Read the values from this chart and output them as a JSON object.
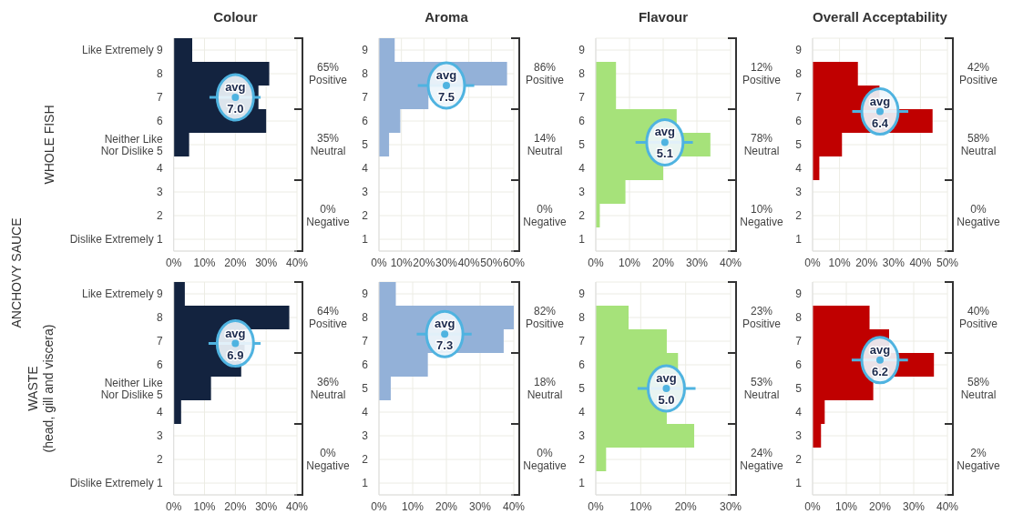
{
  "chart_data": [
    {
      "type": "histogram",
      "orientation": "horizontal",
      "title": "Colour",
      "ylabel": "WHOLE FISH",
      "color": "#13233f",
      "bins": [
        0.5,
        1.5,
        2.5,
        3.5,
        4.5,
        5.5,
        6.5,
        7.5,
        8.5,
        9.5
      ],
      "values": [
        0,
        0,
        0,
        0,
        5,
        30,
        27.5,
        31,
        6
      ],
      "xlim": [
        0,
        40
      ],
      "xticks": [
        {
          "value": 0,
          "label": "0%"
        },
        {
          "value": 10,
          "label": "10%"
        },
        {
          "value": 20,
          "label": "20%"
        },
        {
          "value": 30,
          "label": "30%"
        },
        {
          "value": 40,
          "label": "40%"
        }
      ],
      "ylim": [
        0.5,
        9.5
      ],
      "yticks": [
        {
          "value": 1,
          "label": "Dislike Extremely 1"
        },
        2,
        3,
        4,
        {
          "value": 5,
          "label": "Neither Like\nNor Dislike 5"
        },
        6,
        7,
        8,
        {
          "value": 9,
          "label": "Like Extremely 9"
        }
      ],
      "grid": true,
      "series": [
        {
          "type": "scatter",
          "color": "#4fb3e0",
          "x": [
            7.0
          ],
          "values": [
            20
          ],
          "errors": [
            [
              11.6,
              28.2
            ]
          ],
          "value_labels": [
            "avg\n7.0"
          ]
        }
      ],
      "annotations": [
        "65%\nPositive",
        "35%\nNeutral",
        "0%\nNegative",
        "ANCHOVY SAUCE"
      ]
    },
    {
      "type": "histogram",
      "orientation": "horizontal",
      "title": "Aroma",
      "color": "#93b1d8",
      "bins": [
        0.5,
        1.5,
        2.5,
        3.5,
        4.5,
        5.5,
        6.5,
        7.5,
        8.5,
        9.5
      ],
      "values": [
        0,
        0,
        0,
        0,
        4.5,
        9.5,
        22,
        57,
        7
      ],
      "xlim": [
        0,
        60
      ],
      "xticks": [
        {
          "value": 0,
          "label": "0%"
        },
        {
          "value": 10,
          "label": "10%"
        },
        {
          "value": 20,
          "label": "20%"
        },
        {
          "value": 30,
          "label": "30%"
        },
        {
          "value": 40,
          "label": "40%"
        },
        {
          "value": 50,
          "label": "50%"
        },
        {
          "value": 60,
          "label": "60%"
        }
      ],
      "ylim": [
        0.5,
        9.5
      ],
      "yticks": [
        1,
        2,
        3,
        4,
        5,
        6,
        7,
        8,
        9
      ],
      "grid": true,
      "series": [
        {
          "type": "scatter",
          "color": "#4fb3e0",
          "x": [
            7.5
          ],
          "values": [
            30
          ],
          "errors": [
            [
              17.3,
              42.4
            ]
          ],
          "value_labels": [
            "avg\n7.5"
          ]
        }
      ],
      "annotations": [
        "86%\nPositive",
        "14%\nNeutral",
        "0%\nNegative"
      ]
    },
    {
      "type": "histogram",
      "orientation": "horizontal",
      "title": "Flavour",
      "color": "#a6e27a",
      "bins": [
        0.5,
        1.5,
        2.5,
        3.5,
        4.5,
        5.5,
        6.5,
        7.5,
        8.5,
        9.5
      ],
      "values": [
        0,
        1.2,
        8.8,
        20,
        34,
        24,
        6,
        6,
        0
      ],
      "xlim": [
        0,
        40
      ],
      "xticks": [
        {
          "value": 0,
          "label": "0%"
        },
        {
          "value": 10,
          "label": "10%"
        },
        {
          "value": 20,
          "label": "20%"
        },
        {
          "value": 30,
          "label": "30%"
        },
        {
          "value": 40,
          "label": "40%"
        }
      ],
      "ylim": [
        0.5,
        9.5
      ],
      "yticks": [
        1,
        2,
        3,
        4,
        5,
        6,
        7,
        8,
        9
      ],
      "grid": true,
      "series": [
        {
          "type": "scatter",
          "color": "#4fb3e0",
          "x": [
            5.1
          ],
          "values": [
            20.5
          ],
          "errors": [
            [
              11.8,
              28.8
            ]
          ],
          "value_labels": [
            "avg\n5.1"
          ]
        }
      ],
      "annotations": [
        "12%\nPositive",
        "78%\nNeutral",
        "10%\nNegative"
      ]
    },
    {
      "type": "histogram",
      "orientation": "horizontal",
      "title": "Overall Acceptability",
      "color": "#c00000",
      "bins": [
        0.5,
        1.5,
        2.5,
        3.5,
        4.5,
        5.5,
        6.5,
        7.5,
        8.5,
        9.5
      ],
      "values": [
        0,
        0,
        0,
        2.5,
        10.9,
        44.5,
        24.8,
        16.8,
        0
      ],
      "xlim": [
        0,
        50
      ],
      "xticks": [
        {
          "value": 0,
          "label": "0%"
        },
        {
          "value": 10,
          "label": "10%"
        },
        {
          "value": 20,
          "label": "20%"
        },
        {
          "value": 30,
          "label": "30%"
        },
        {
          "value": 40,
          "label": "40%"
        },
        {
          "value": 50,
          "label": "50%"
        }
      ],
      "ylim": [
        0.5,
        9.5
      ],
      "yticks": [
        1,
        2,
        3,
        4,
        5,
        6,
        7,
        8,
        9
      ],
      "grid": true,
      "series": [
        {
          "type": "scatter",
          "color": "#4fb3e0",
          "x": [
            6.4
          ],
          "values": [
            25
          ],
          "errors": [
            [
              14.7,
              35.5
            ]
          ],
          "value_labels": [
            "avg\n6.4"
          ]
        }
      ],
      "annotations": [
        "42%\nPositive",
        "58%\nNeutral",
        "0%\nNegative"
      ]
    },
    {
      "type": "histogram",
      "orientation": "horizontal",
      "ylabel": "WASTE\n(head, gill and viscera)",
      "color": "#13233f",
      "bins": [
        0.5,
        1.5,
        2.5,
        3.5,
        4.5,
        5.5,
        6.5,
        7.5,
        8.5,
        9.5
      ],
      "values": [
        0,
        0,
        0,
        2.4,
        12.1,
        21.9,
        23,
        37.5,
        3.6
      ],
      "xlim": [
        0,
        40
      ],
      "xticks": [
        {
          "value": 0,
          "label": "0%"
        },
        {
          "value": 10,
          "label": "10%"
        },
        {
          "value": 20,
          "label": "20%"
        },
        {
          "value": 30,
          "label": "30%"
        },
        {
          "value": 40,
          "label": "40%"
        }
      ],
      "ylim": [
        0.5,
        9.5
      ],
      "yticks": [
        {
          "value": 1,
          "label": "Dislike Extremely 1"
        },
        2,
        3,
        4,
        {
          "value": 5,
          "label": "Neither Like\nNor Dislike 5"
        },
        6,
        7,
        8,
        {
          "value": 9,
          "label": "Like Extremely 9"
        }
      ],
      "grid": true,
      "series": [
        {
          "type": "scatter",
          "color": "#4fb3e0",
          "x": [
            6.9
          ],
          "values": [
            20
          ],
          "errors": [
            [
              11.3,
              28.2
            ]
          ],
          "value_labels": [
            "avg\n6.9"
          ]
        }
      ],
      "annotations": [
        "64%\nPositive",
        "36%\nNeutral",
        "0%\nNegative"
      ]
    },
    {
      "type": "histogram",
      "orientation": "horizontal",
      "color": "#93b1d8",
      "bins": [
        0.5,
        1.5,
        2.5,
        3.5,
        4.5,
        5.5,
        6.5,
        7.5,
        8.5,
        9.5
      ],
      "values": [
        0,
        0,
        0,
        0,
        3.5,
        14.5,
        37,
        40,
        5
      ],
      "xlim": [
        0,
        40
      ],
      "xticks": [
        {
          "value": 0,
          "label": "0%"
        },
        {
          "value": 10,
          "label": "10%"
        },
        {
          "value": 20,
          "label": "20%"
        },
        {
          "value": 30,
          "label": "30%"
        },
        {
          "value": 40,
          "label": "40%"
        }
      ],
      "ylim": [
        0.5,
        9.5
      ],
      "yticks": [
        1,
        2,
        3,
        4,
        5,
        6,
        7,
        8,
        9
      ],
      "grid": true,
      "series": [
        {
          "type": "scatter",
          "color": "#4fb3e0",
          "x": [
            7.3
          ],
          "values": [
            19.5
          ],
          "errors": [
            [
              11.2,
              27.5
            ]
          ],
          "value_labels": [
            "avg\n7.3"
          ]
        }
      ],
      "annotations": [
        "82%\nPositive",
        "18%\nNeutral",
        "0%\nNegative"
      ]
    },
    {
      "type": "histogram",
      "orientation": "horizontal",
      "color": "#a6e27a",
      "bins": [
        0.5,
        1.5,
        2.5,
        3.5,
        4.5,
        5.5,
        6.5,
        7.5,
        8.5,
        9.5
      ],
      "values": [
        0,
        2.3,
        21.9,
        15.8,
        19.5,
        18.3,
        15.8,
        7.3,
        0
      ],
      "xlim": [
        0,
        30
      ],
      "xticks": [
        {
          "value": 0,
          "label": "0%"
        },
        {
          "value": 10,
          "label": "10%"
        },
        {
          "value": 20,
          "label": "20%"
        },
        {
          "value": 30,
          "label": "30%"
        }
      ],
      "ylim": [
        0.5,
        9.5
      ],
      "yticks": [
        1,
        2,
        3,
        4,
        5,
        6,
        7,
        8,
        9
      ],
      "grid": true,
      "series": [
        {
          "type": "scatter",
          "color": "#4fb3e0",
          "x": [
            5.0
          ],
          "values": [
            15.7
          ],
          "errors": [
            [
              9.3,
              22.2
            ]
          ],
          "value_labels": [
            "avg\n5.0"
          ]
        }
      ],
      "annotations": [
        "23%\nPositive",
        "53%\nNeutral",
        "24%\nNegative"
      ]
    },
    {
      "type": "histogram",
      "orientation": "horizontal",
      "color": "#c00000",
      "bins": [
        0.5,
        1.5,
        2.5,
        3.5,
        4.5,
        5.5,
        6.5,
        7.5,
        8.5,
        9.5
      ],
      "values": [
        0,
        0,
        2.5,
        3.6,
        18,
        36,
        22.7,
        16.9,
        0
      ],
      "xlim": [
        0,
        40
      ],
      "xticks": [
        {
          "value": 0,
          "label": "0%"
        },
        {
          "value": 10,
          "label": "10%"
        },
        {
          "value": 20,
          "label": "20%"
        },
        {
          "value": 30,
          "label": "30%"
        },
        {
          "value": 40,
          "label": "40%"
        }
      ],
      "ylim": [
        0.5,
        9.5
      ],
      "yticks": [
        1,
        2,
        3,
        4,
        5,
        6,
        7,
        8,
        9
      ],
      "grid": true,
      "series": [
        {
          "type": "scatter",
          "color": "#4fb3e0",
          "x": [
            6.2
          ],
          "values": [
            20
          ],
          "errors": [
            [
              11.6,
              28.3
            ]
          ],
          "value_labels": [
            "avg\n6.2"
          ]
        }
      ],
      "annotations": [
        "40%\nPositive",
        "58%\nNeutral",
        "2%\nNegative"
      ]
    }
  ]
}
